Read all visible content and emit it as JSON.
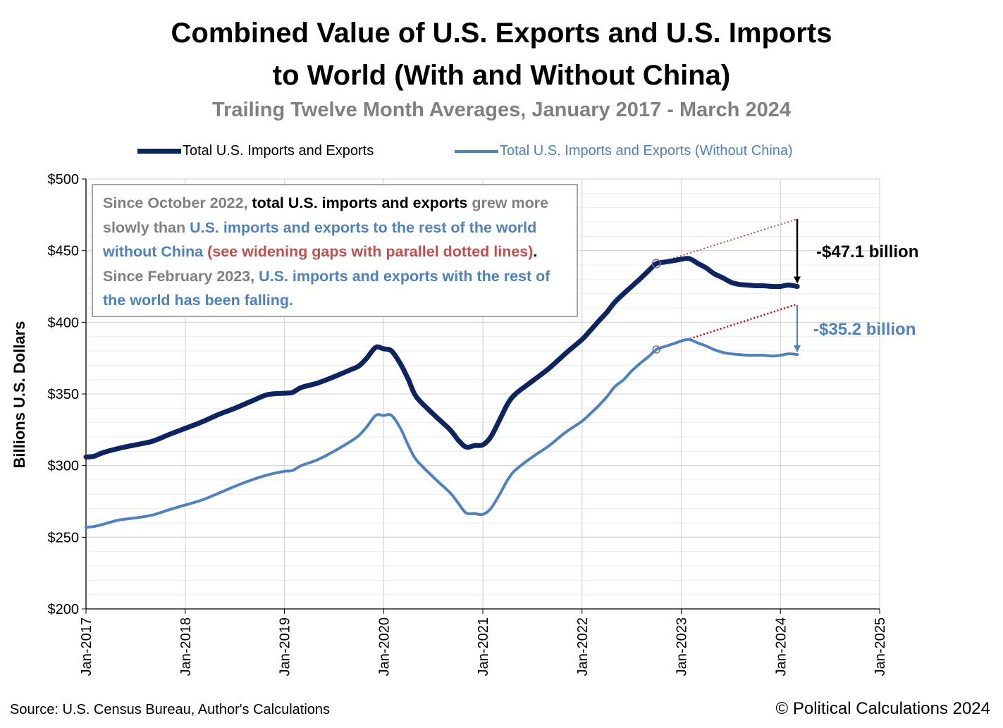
{
  "title_line1": "Combined Value of U.S. Exports and U.S. Imports",
  "title_line2": "to World (With and Without China)",
  "subtitle": "Trailing Twelve Month Averages, January 2017 - March 2024",
  "legend": [
    {
      "label": "Total U.S. Imports and Exports",
      "color": "#0d2461"
    },
    {
      "label": "Total U.S. Imports and Exports (Without China)",
      "color": "#4f81bd"
    }
  ],
  "annotation": {
    "p1": "Since October 2022, ",
    "p2": "total U.S. imports and exports",
    "p3": " grew more slowly than ",
    "p4": "U.S. imports and exports to the rest of the world without China",
    "p5": " (see widening gaps with parallel dotted lines)",
    "p6": ".  ",
    "p7": "Since February 2023",
    "p8": ", U.S. imports and exports with the rest of the world has been falling."
  },
  "gap_labels": {
    "total": "-$47.1 billion",
    "without_china": "-$35.2 billion"
  },
  "source": "Source: U.S. Census Bureau, Author's Calculations",
  "copyright": "© Political Calculations 2024",
  "chart_data": {
    "type": "line",
    "title": "Combined Value of U.S. Exports and U.S. Imports to World (With and Without China)",
    "subtitle": "Trailing Twelve Month Averages, January 2017 - March 2024",
    "xlabel": "",
    "ylabel": "Billions U.S. Dollars",
    "xlim": [
      2017,
      2025
    ],
    "ylim": [
      200,
      500
    ],
    "x_ticks": [
      "Jan-2017",
      "Jan-2018",
      "Jan-2019",
      "Jan-2020",
      "Jan-2021",
      "Jan-2022",
      "Jan-2023",
      "Jan-2024",
      "Jan-2025"
    ],
    "y_ticks": [
      "$200",
      "$250",
      "$300",
      "$350",
      "$400",
      "$450",
      "$500"
    ],
    "series": [
      {
        "name": "Total U.S. Imports and Exports",
        "color": "#0d2461",
        "points": [
          [
            2017.0,
            306
          ],
          [
            2017.08,
            306.5
          ],
          [
            2017.17,
            309
          ],
          [
            2017.33,
            312
          ],
          [
            2017.5,
            314.5
          ],
          [
            2017.67,
            317
          ],
          [
            2017.83,
            321.5
          ],
          [
            2018.0,
            326
          ],
          [
            2018.17,
            330.5
          ],
          [
            2018.33,
            335.5
          ],
          [
            2018.5,
            340
          ],
          [
            2018.67,
            345
          ],
          [
            2018.83,
            349.5
          ],
          [
            2019.0,
            350.5
          ],
          [
            2019.08,
            351
          ],
          [
            2019.17,
            354.5
          ],
          [
            2019.33,
            357.5
          ],
          [
            2019.5,
            362
          ],
          [
            2019.67,
            367
          ],
          [
            2019.75,
            369.5
          ],
          [
            2019.83,
            375
          ],
          [
            2019.92,
            382.5
          ],
          [
            2020.0,
            381.5
          ],
          [
            2020.08,
            380
          ],
          [
            2020.17,
            371
          ],
          [
            2020.25,
            360
          ],
          [
            2020.33,
            348
          ],
          [
            2020.5,
            336
          ],
          [
            2020.67,
            325
          ],
          [
            2020.75,
            318
          ],
          [
            2020.83,
            313
          ],
          [
            2020.92,
            314
          ],
          [
            2021.0,
            314.5
          ],
          [
            2021.08,
            320
          ],
          [
            2021.17,
            332
          ],
          [
            2021.25,
            343
          ],
          [
            2021.33,
            350
          ],
          [
            2021.5,
            359
          ],
          [
            2021.67,
            368
          ],
          [
            2021.83,
            378
          ],
          [
            2022.0,
            388
          ],
          [
            2022.08,
            394
          ],
          [
            2022.17,
            401
          ],
          [
            2022.25,
            407
          ],
          [
            2022.33,
            414
          ],
          [
            2022.42,
            420
          ],
          [
            2022.5,
            425
          ],
          [
            2022.58,
            430
          ],
          [
            2022.67,
            436
          ],
          [
            2022.75,
            441
          ],
          [
            2022.83,
            442
          ],
          [
            2022.92,
            443
          ],
          [
            2023.0,
            444
          ],
          [
            2023.08,
            444.5
          ],
          [
            2023.17,
            441
          ],
          [
            2023.25,
            438
          ],
          [
            2023.33,
            434
          ],
          [
            2023.42,
            431
          ],
          [
            2023.5,
            428
          ],
          [
            2023.58,
            426.5
          ],
          [
            2023.67,
            426
          ],
          [
            2023.75,
            425.5
          ],
          [
            2023.83,
            425.5
          ],
          [
            2023.92,
            425
          ],
          [
            2024.0,
            425
          ],
          [
            2024.08,
            426
          ],
          [
            2024.17,
            425
          ]
        ]
      },
      {
        "name": "Total U.S. Imports and Exports (Without China)",
        "color": "#4f81bd",
        "points": [
          [
            2017.0,
            257
          ],
          [
            2017.08,
            257.5
          ],
          [
            2017.17,
            259
          ],
          [
            2017.33,
            262
          ],
          [
            2017.5,
            263.5
          ],
          [
            2017.67,
            265.5
          ],
          [
            2017.83,
            269
          ],
          [
            2018.0,
            272.5
          ],
          [
            2018.17,
            276
          ],
          [
            2018.33,
            280.5
          ],
          [
            2018.5,
            285.5
          ],
          [
            2018.67,
            290
          ],
          [
            2018.83,
            293.5
          ],
          [
            2019.0,
            296
          ],
          [
            2019.08,
            296.5
          ],
          [
            2019.17,
            300
          ],
          [
            2019.33,
            304
          ],
          [
            2019.5,
            310
          ],
          [
            2019.67,
            317
          ],
          [
            2019.75,
            321
          ],
          [
            2019.83,
            327
          ],
          [
            2019.92,
            335
          ],
          [
            2020.0,
            335
          ],
          [
            2020.08,
            335
          ],
          [
            2020.17,
            326
          ],
          [
            2020.25,
            314
          ],
          [
            2020.33,
            304
          ],
          [
            2020.5,
            292
          ],
          [
            2020.67,
            281
          ],
          [
            2020.75,
            274
          ],
          [
            2020.83,
            267
          ],
          [
            2020.92,
            266.5
          ],
          [
            2021.0,
            266
          ],
          [
            2021.08,
            270
          ],
          [
            2021.17,
            280
          ],
          [
            2021.25,
            290
          ],
          [
            2021.33,
            297
          ],
          [
            2021.5,
            306
          ],
          [
            2021.67,
            314
          ],
          [
            2021.83,
            323
          ],
          [
            2022.0,
            331
          ],
          [
            2022.08,
            336
          ],
          [
            2022.17,
            342
          ],
          [
            2022.25,
            348
          ],
          [
            2022.33,
            355
          ],
          [
            2022.42,
            360
          ],
          [
            2022.5,
            366
          ],
          [
            2022.58,
            371
          ],
          [
            2022.67,
            376
          ],
          [
            2022.75,
            381
          ],
          [
            2022.83,
            383
          ],
          [
            2022.92,
            385
          ],
          [
            2023.0,
            387
          ],
          [
            2023.08,
            388
          ],
          [
            2023.17,
            385.5
          ],
          [
            2023.25,
            383.5
          ],
          [
            2023.33,
            381
          ],
          [
            2023.42,
            379
          ],
          [
            2023.5,
            378
          ],
          [
            2023.58,
            377.5
          ],
          [
            2023.67,
            377
          ],
          [
            2023.75,
            377
          ],
          [
            2023.83,
            377
          ],
          [
            2023.92,
            376.5
          ],
          [
            2024.0,
            377
          ],
          [
            2024.08,
            378
          ],
          [
            2024.17,
            377.5
          ]
        ]
      }
    ],
    "trend_lines": [
      {
        "series": "Total U.S. Imports and Exports",
        "from": [
          2022.75,
          441
        ],
        "to": [
          2024.17,
          472.1
        ]
      },
      {
        "series": "Total U.S. Imports and Exports (Without China)",
        "from": [
          2022.75,
          381
        ],
        "to": [
          2024.17,
          412.7
        ]
      }
    ]
  }
}
